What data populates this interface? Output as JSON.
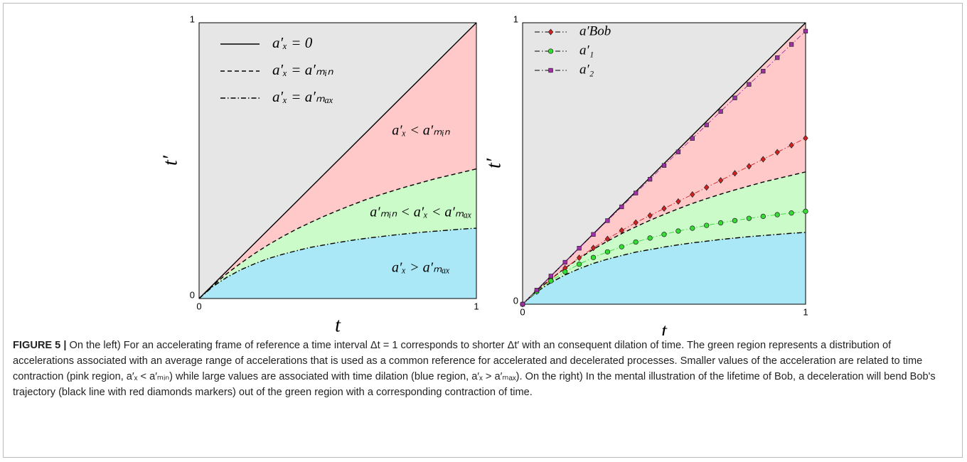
{
  "chart_data": [
    {
      "type": "line",
      "xlabel": "t",
      "ylabel": "t′",
      "xlim": [
        0,
        1
      ],
      "ylim": [
        0,
        1
      ],
      "xticks": [
        0,
        1
      ],
      "yticks": [
        0,
        1
      ],
      "legend": "upper left",
      "fill_colors": [
        "#e6e6e6",
        "#ffc9c9",
        "#cbfbc8",
        "#aae8f7"
      ],
      "x": [
        0,
        0.05,
        0.1,
        0.15,
        0.2,
        0.25,
        0.3,
        0.35,
        0.4,
        0.45,
        0.5,
        0.55,
        0.6,
        0.65,
        0.7,
        0.75,
        0.8,
        0.85,
        0.9,
        0.95,
        1
      ],
      "series": [
        {
          "name": "a′ₓ = 0",
          "color": "#000000",
          "style": "solid",
          "values": [
            0,
            0.05,
            0.1,
            0.15,
            0.2,
            0.25,
            0.3,
            0.35,
            0.4,
            0.45,
            0.5,
            0.55,
            0.6,
            0.65,
            0.7,
            0.75,
            0.8,
            0.85,
            0.9,
            0.95,
            1
          ]
        },
        {
          "name": "a′ₓ = a′ₘᵢₙ",
          "color": "#000000",
          "style": "dashed",
          "values": [
            0,
            0.047,
            0.09,
            0.128,
            0.163,
            0.195,
            0.224,
            0.251,
            0.275,
            0.298,
            0.319,
            0.339,
            0.358,
            0.375,
            0.391,
            0.406,
            0.42,
            0.434,
            0.446,
            0.458,
            0.47
          ]
        },
        {
          "name": "a′ₓ = a′ₘₐₓ",
          "color": "#000000",
          "style": "dashdot",
          "values": [
            0,
            0.044,
            0.077,
            0.104,
            0.126,
            0.145,
            0.16,
            0.173,
            0.185,
            0.194,
            0.203,
            0.211,
            0.218,
            0.224,
            0.23,
            0.235,
            0.24,
            0.244,
            0.248,
            0.252,
            0.255
          ]
        }
      ],
      "annotations": [
        "a′ₓ < a′ₘᵢₙ",
        "a′ₘᵢₙ < a′ₓ < a′ₘₐₓ",
        "a′ₓ > a′ₘₐₓ"
      ]
    },
    {
      "type": "line",
      "xlabel": "t",
      "ylabel": "t′",
      "xlim": [
        0,
        1
      ],
      "ylim": [
        0,
        1
      ],
      "xticks": [
        0,
        1
      ],
      "yticks": [
        0,
        1
      ],
      "legend": "upper left",
      "fill_colors": [
        "#e6e6e6",
        "#ffc9c9",
        "#cbfbc8",
        "#aae8f7"
      ],
      "x": [
        0,
        0.05,
        0.1,
        0.15,
        0.2,
        0.25,
        0.3,
        0.35,
        0.4,
        0.45,
        0.5,
        0.55,
        0.6,
        0.65,
        0.7,
        0.75,
        0.8,
        0.85,
        0.9,
        0.95,
        1
      ],
      "series": [
        {
          "color": "#000000",
          "style": "solid",
          "values": [
            0,
            0.05,
            0.1,
            0.15,
            0.2,
            0.25,
            0.3,
            0.35,
            0.4,
            0.45,
            0.5,
            0.55,
            0.6,
            0.65,
            0.7,
            0.75,
            0.8,
            0.85,
            0.9,
            0.95,
            1
          ]
        },
        {
          "color": "#000000",
          "style": "dashed",
          "values": [
            0,
            0.047,
            0.09,
            0.128,
            0.163,
            0.195,
            0.224,
            0.251,
            0.275,
            0.298,
            0.319,
            0.339,
            0.358,
            0.375,
            0.391,
            0.406,
            0.42,
            0.434,
            0.446,
            0.458,
            0.47
          ]
        },
        {
          "color": "#000000",
          "style": "dashdot",
          "values": [
            0,
            0.044,
            0.077,
            0.104,
            0.126,
            0.145,
            0.16,
            0.173,
            0.185,
            0.194,
            0.203,
            0.211,
            0.218,
            0.224,
            0.23,
            0.235,
            0.24,
            0.244,
            0.248,
            0.252,
            0.255
          ]
        },
        {
          "name": "a′Bob",
          "color": "#d42020",
          "style": "dashdot",
          "marker": "diamond",
          "values": [
            0,
            0.045,
            0.088,
            0.128,
            0.165,
            0.2,
            0.232,
            0.262,
            0.29,
            0.315,
            0.34,
            0.365,
            0.39,
            0.415,
            0.44,
            0.465,
            0.49,
            0.515,
            0.54,
            0.565,
            0.59
          ]
        },
        {
          "name": "a′₁",
          "color": "#33dd33",
          "style": "dashdot",
          "marker": "circle",
          "values": [
            0,
            0.045,
            0.083,
            0.115,
            0.142,
            0.166,
            0.186,
            0.204,
            0.221,
            0.235,
            0.248,
            0.26,
            0.27,
            0.28,
            0.289,
            0.297,
            0.305,
            0.312,
            0.318,
            0.324,
            0.33
          ]
        },
        {
          "name": "a′₂",
          "color": "#a030a8",
          "style": "dashdot",
          "marker": "square",
          "values": [
            0,
            0.05,
            0.1,
            0.149,
            0.199,
            0.248,
            0.297,
            0.346,
            0.395,
            0.444,
            0.493,
            0.541,
            0.589,
            0.637,
            0.685,
            0.733,
            0.781,
            0.828,
            0.876,
            0.923,
            0.97
          ]
        }
      ]
    }
  ],
  "caption": {
    "label": "FIGURE 5 |",
    "text": "On the left) For an accelerating frame of reference a time interval Δt = 1 corresponds to shorter Δt′ with an consequent dilation of time. The green region represents a distribution of accelerations associated with an average range of accelerations that is used as a common reference for accelerated and decelerated processes. Smaller values of the acceleration are related to time contraction (pink region, a′ₓ < a′ₘᵢₙ) while large values are associated with time dilation (blue region, a′ₓ > a′ₘₐₓ). On the right) In the mental illustration of the lifetime of Bob, a deceleration will bend Bob's trajectory (black line with red diamonds markers) out of the green region with a corresponding contraction of time."
  }
}
